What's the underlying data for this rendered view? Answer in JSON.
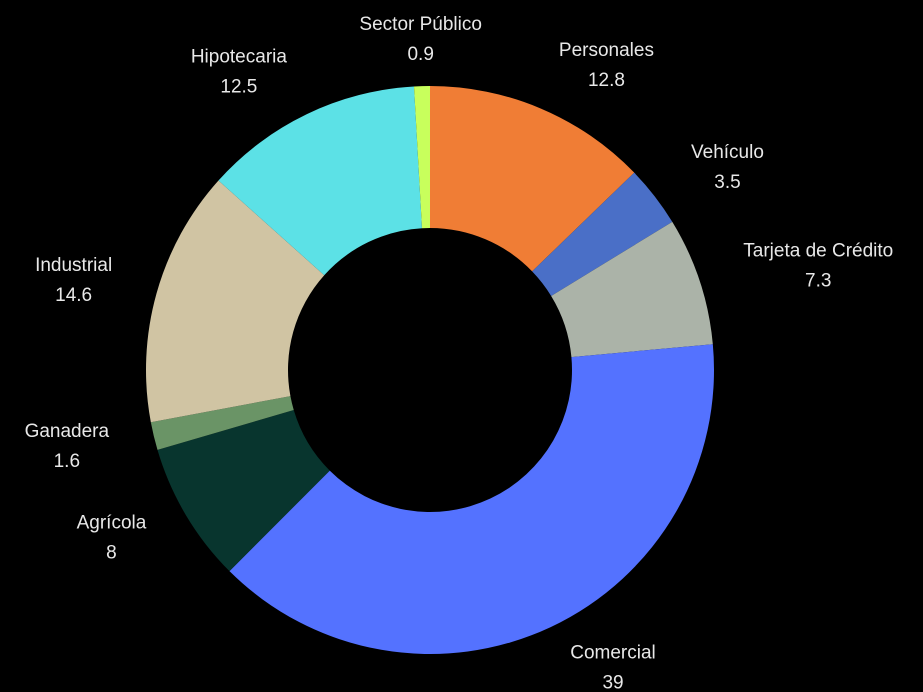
{
  "chart_data": {
    "type": "donut",
    "categories": [
      "Personales",
      "Vehículo",
      "Tarjeta de Crédito",
      "Comercial",
      "Agrícola",
      "Ganadera",
      "Industrial",
      "Hipotecaria",
      "Sector Público"
    ],
    "values": [
      12.8,
      3.5,
      7.3,
      39,
      8,
      1.6,
      14.6,
      12.5,
      0.9
    ],
    "colors": [
      "#f07d35",
      "#4a6fc7",
      "#abb3a8",
      "#5472ff",
      "#08352e",
      "#6a9466",
      "#d0c4a3",
      "#5ce1e6",
      "#c8ff5c"
    ]
  }
}
